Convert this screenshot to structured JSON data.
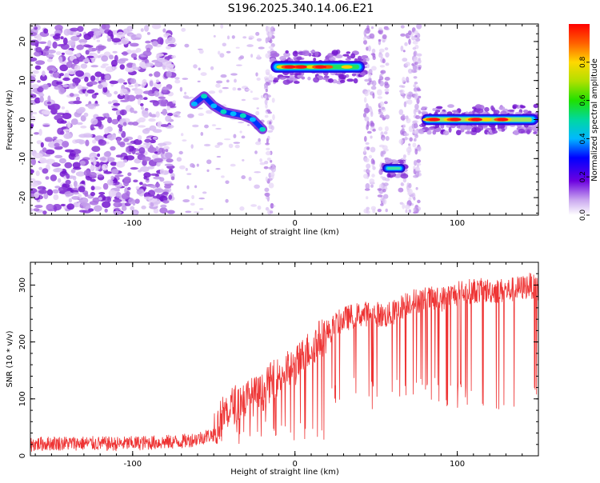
{
  "figure": {
    "title": "S196.2025.340.14.06.E21"
  },
  "chart_data": [
    {
      "type": "heatmap",
      "xlabel": "Height of straight line (km)",
      "ylabel": "Frequency (Hz)",
      "xlim": [
        -163,
        150
      ],
      "ylim": [
        -24.5,
        24.5
      ],
      "xticks": [
        -100,
        0,
        100
      ],
      "yticks": [
        -20,
        -10,
        0,
        10,
        20
      ],
      "colorbar": {
        "label": "Normalized spectral amplitude",
        "range": [
          0,
          1
        ],
        "ticks": [
          0.0,
          0.2,
          0.4,
          0.6,
          0.8
        ],
        "tick_labels": [
          "0.0",
          "0.2",
          "0.4",
          "0.6",
          "0.8"
        ]
      },
      "features": [
        {
          "name": "noise field",
          "x_range": [
            -163,
            -75
          ],
          "f_range": [
            -24,
            24
          ],
          "amplitude": 0.05
        },
        {
          "name": "scattered clutter",
          "x_range": [
            -75,
            -20
          ],
          "f_range": [
            -24,
            24
          ],
          "amplitude": 0.03
        },
        {
          "name": "descending trace",
          "points": [
            [
              -62,
              4
            ],
            [
              -56,
              6
            ],
            [
              -50,
              3.5
            ],
            [
              -44,
              2
            ],
            [
              -38,
              1.5
            ],
            [
              -32,
              1
            ],
            [
              -26,
              0
            ],
            [
              -20,
              -2.5
            ]
          ],
          "amplitude": 0.25
        },
        {
          "name": "band 1",
          "x_range": [
            -15,
            43
          ],
          "f": 13.5,
          "amplitude": 0.9
        },
        {
          "name": "band 2",
          "x_range": [
            54,
            68
          ],
          "f": -12.5,
          "amplitude": 0.3
        },
        {
          "name": "band 3",
          "x_range": [
            78,
            150
          ],
          "f": 0,
          "amplitude": 0.95
        }
      ]
    },
    {
      "type": "line",
      "xlabel": "Height of straight line (km)",
      "ylabel": "SNR (10 * v/v)",
      "xlim": [
        -163,
        150
      ],
      "ylim": [
        0,
        340
      ],
      "xticks": [
        -100,
        0,
        100
      ],
      "yticks": [
        0,
        100,
        200,
        300
      ],
      "series": [
        {
          "name": "SNR",
          "color": "#ee3333",
          "x": [
            -163,
            -150,
            -130,
            -110,
            -90,
            -70,
            -60,
            -50,
            -45,
            -40,
            -35,
            -30,
            -25,
            -20,
            -15,
            -10,
            -5,
            0,
            5,
            10,
            15,
            20,
            25,
            30,
            35,
            40,
            45,
            50,
            55,
            60,
            65,
            70,
            80,
            90,
            100,
            110,
            120,
            130,
            140,
            145,
            150
          ],
          "y": [
            20,
            22,
            22,
            21,
            23,
            25,
            30,
            38,
            70,
            85,
            95,
            100,
            105,
            110,
            130,
            140,
            150,
            155,
            175,
            190,
            205,
            215,
            230,
            240,
            245,
            248,
            250,
            250,
            245,
            250,
            260,
            270,
            275,
            275,
            285,
            290,
            290,
            290,
            295,
            300,
            290
          ]
        }
      ]
    }
  ]
}
